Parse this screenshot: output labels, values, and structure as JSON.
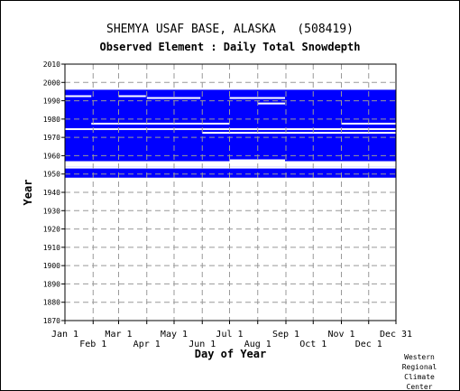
{
  "title": "SHEMYA USAF BASE, ALASKA   (508419)",
  "subtitle": "Observed Element : Daily Total Snowdepth",
  "credit": [
    "Western",
    "Regional",
    "Climate",
    "Center"
  ],
  "chart_data": {
    "type": "heatmap",
    "description_of_marks": "data availability by year and day of year",
    "xlabel": "Day of Year",
    "ylabel": "Year",
    "xlim": [
      1,
      365
    ],
    "ylim": [
      1870,
      2010
    ],
    "yticks": [
      1870,
      1880,
      1890,
      1900,
      1910,
      1920,
      1930,
      1940,
      1950,
      1960,
      1970,
      1980,
      1990,
      2000,
      2010
    ],
    "xticks_top": [
      {
        "label": "Jan 1",
        "day": 1
      },
      {
        "label": "Mar 1",
        "day": 60
      },
      {
        "label": "May 1",
        "day": 121
      },
      {
        "label": "Jul 1",
        "day": 182
      },
      {
        "label": "Sep 1",
        "day": 244
      },
      {
        "label": "Nov 1",
        "day": 305
      },
      {
        "label": "Dec 31",
        "day": 365
      }
    ],
    "xticks_bottom": [
      {
        "label": "Feb 1",
        "day": 32
      },
      {
        "label": "Apr 1",
        "day": 91
      },
      {
        "label": "Jun 1",
        "day": 152
      },
      {
        "label": "Aug 1",
        "day": 213
      },
      {
        "label": "Oct 1",
        "day": 274
      },
      {
        "label": "Dec 1",
        "day": 335
      }
    ],
    "grid_days": [
      32,
      60,
      91,
      121,
      152,
      182,
      213,
      244,
      274,
      305,
      335
    ],
    "color": "#0000ff",
    "coverage": [
      {
        "year_from": 1948,
        "year_to": 1950,
        "day_from": 1,
        "day_to": 365
      },
      {
        "year_from": 1950,
        "year_to": 1953,
        "day_from": 1,
        "day_to": 365
      },
      {
        "year_from": 1957,
        "year_to": 1995,
        "day_from": 1,
        "day_to": 365
      }
    ],
    "gaps": [
      {
        "year": 1992,
        "day_from": 1,
        "day_to": 30
      },
      {
        "year": 1992,
        "day_from": 60,
        "day_to": 90
      },
      {
        "year": 1991,
        "day_from": 91,
        "day_to": 150
      },
      {
        "year": 1991,
        "day_from": 182,
        "day_to": 243
      },
      {
        "year": 1988,
        "day_from": 213,
        "day_to": 243
      },
      {
        "year": 1977,
        "day_from": 30,
        "day_to": 182
      },
      {
        "year": 1977,
        "day_from": 305,
        "day_to": 365
      },
      {
        "year": 1974,
        "day_from": 1,
        "day_to": 365
      },
      {
        "year": 1972,
        "day_from": 152,
        "day_to": 365
      },
      {
        "year": 1957,
        "day_from": 182,
        "day_to": 243
      },
      {
        "year": 1955,
        "day_from": 1,
        "day_to": 365
      },
      {
        "year": 1953,
        "day_from": 1,
        "day_to": 365
      }
    ]
  }
}
